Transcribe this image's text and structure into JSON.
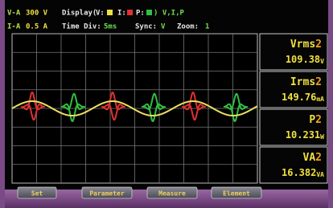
{
  "header": {
    "row1": {
      "channel": "V-A",
      "range": "300 V",
      "display_label": "Display(",
      "v_key": "V:",
      "i_key": "I:",
      "p_key": "P:",
      "display_value": ") V,I,P"
    },
    "row2": {
      "channel": "I-A",
      "range": "0.5 A",
      "time_div_label": "Time Div:",
      "time_div": "5ms",
      "sync_label": "Sync:",
      "sync": "V",
      "zoom_label": "Zoom:",
      "zoom": "1"
    }
  },
  "measurements": [
    {
      "label": "Vrms",
      "element": "2",
      "value": "109.38",
      "unit": "V"
    },
    {
      "label": "Irms",
      "element": "2",
      "value": "149.76",
      "unit": "mA"
    },
    {
      "label": "P",
      "element": "2",
      "value": "10.231",
      "unit": "W"
    },
    {
      "label": "VA",
      "element": "2",
      "value": "16.382",
      "unit": "VA"
    }
  ],
  "buttons": [
    "Set",
    "Parameter",
    "Measure",
    "Element"
  ]
}
